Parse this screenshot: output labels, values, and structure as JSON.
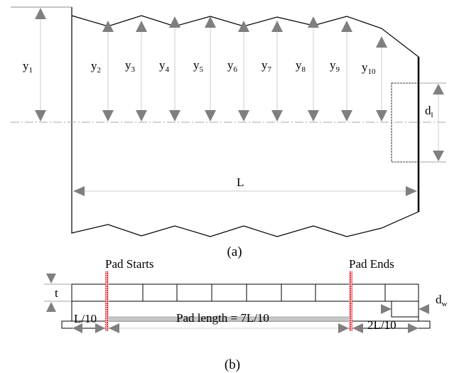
{
  "figure_a": {
    "caption": "(a)",
    "y_labels": [
      {
        "base": "y",
        "sub": "1"
      },
      {
        "base": "y",
        "sub": "2"
      },
      {
        "base": "y",
        "sub": "3"
      },
      {
        "base": "y",
        "sub": "4"
      },
      {
        "base": "y",
        "sub": "5"
      },
      {
        "base": "y",
        "sub": "6"
      },
      {
        "base": "y",
        "sub": "7"
      },
      {
        "base": "y",
        "sub": "8"
      },
      {
        "base": "y",
        "sub": "9"
      },
      {
        "base": "y",
        "sub": "10"
      }
    ],
    "length_label": "L",
    "dl_label": {
      "base": "d",
      "sub": "l"
    }
  },
  "figure_b": {
    "caption": "(b)",
    "pad_starts": "Pad Starts",
    "pad_ends": "Pad Ends",
    "thickness_label": "t",
    "dw_label": {
      "base": "d",
      "sub": "w"
    },
    "left_dim": "L/10",
    "pad_length": "Pad length = 7L/10",
    "right_dim": "2L/10"
  },
  "colors": {
    "line": "#000000",
    "arrow": "#808080",
    "pad_marker": "#e0303a",
    "pad_fill": "#c8c8c8"
  }
}
